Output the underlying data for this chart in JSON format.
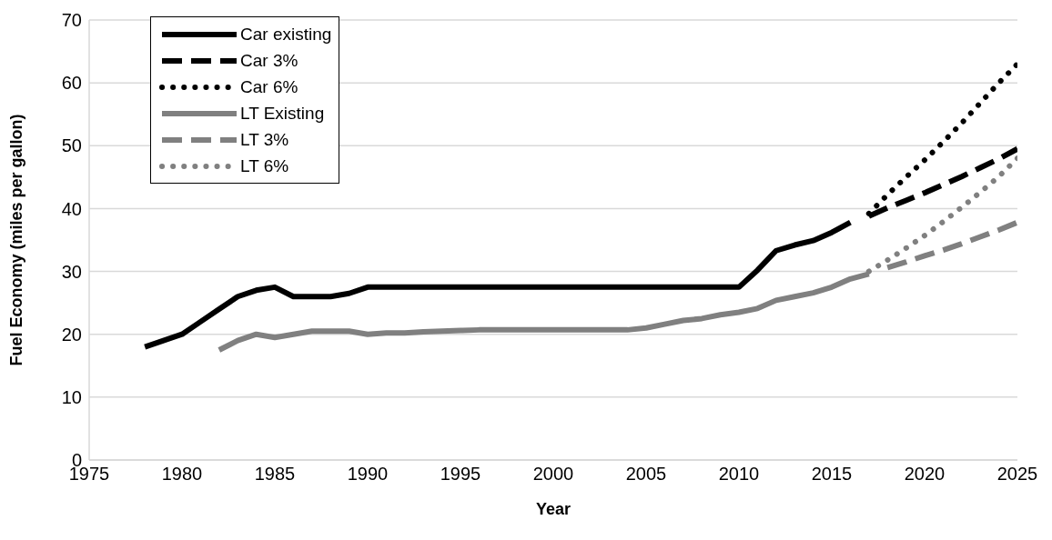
{
  "chart_data": {
    "type": "line",
    "xlabel": "Year",
    "ylabel": "Fuel Economy (miles per gallon)",
    "xlim": [
      1975,
      2025
    ],
    "xticks": [
      1975,
      1980,
      1985,
      1990,
      1995,
      2000,
      2005,
      2010,
      2015,
      2020,
      2025
    ],
    "ylim": [
      0,
      70
    ],
    "yticks": [
      0,
      10,
      20,
      30,
      40,
      50,
      60,
      70
    ],
    "grid": "y",
    "legend": "top left",
    "marker": "none",
    "series": [
      {
        "name": "Car existing",
        "color": "#000000",
        "line_style": "solid",
        "x": [
          1978,
          1979,
          1980,
          1981,
          1982,
          1983,
          1984,
          1985,
          1986,
          1987,
          1988,
          1989,
          1990,
          2010,
          2011,
          2012,
          2013,
          2014,
          2015,
          2016
        ],
        "values": [
          18,
          19,
          20,
          22,
          24,
          26,
          27,
          27.5,
          26,
          26,
          26,
          26.5,
          27.5,
          27.5,
          30.2,
          33.3,
          34.2,
          34.9,
          36.2,
          37.8
        ]
      },
      {
        "name": "Car 3%",
        "color": "#000000",
        "line_style": "dashed",
        "x": [
          2017,
          2018,
          2019,
          2020,
          2021,
          2022,
          2023,
          2024,
          2025
        ],
        "values": [
          38.8,
          40.1,
          41.3,
          42.5,
          43.8,
          45.1,
          46.5,
          47.9,
          49.5
        ]
      },
      {
        "name": "Car 6%",
        "color": "#000000",
        "line_style": "dotted",
        "x": [
          2017,
          2018,
          2019,
          2020,
          2021,
          2022,
          2023,
          2024,
          2025
        ],
        "values": [
          39.2,
          42.2,
          45,
          47.7,
          50.6,
          53.6,
          56.8,
          60,
          63
        ]
      },
      {
        "name": "LT Existing",
        "color": "#808080",
        "line_style": "solid",
        "x": [
          1982,
          1983,
          1984,
          1985,
          1986,
          1987,
          1988,
          1989,
          1990,
          1991,
          1992,
          1993,
          1994,
          1995,
          1996,
          2004,
          2005,
          2006,
          2007,
          2008,
          2009,
          2010,
          2011,
          2012,
          2013,
          2014,
          2015,
          2016,
          2017
        ],
        "values": [
          17.5,
          19,
          20,
          19.5,
          20,
          20.5,
          20.5,
          20.5,
          20,
          20.2,
          20.2,
          20.4,
          20.5,
          20.6,
          20.7,
          20.7,
          21,
          21.6,
          22.2,
          22.5,
          23.1,
          23.5,
          24.1,
          25.4,
          26,
          26.6,
          27.5,
          28.8,
          29.6
        ]
      },
      {
        "name": "LT 3%",
        "color": "#808080",
        "line_style": "dashed",
        "x": [
          2018,
          2019,
          2020,
          2021,
          2022,
          2023,
          2024,
          2025
        ],
        "values": [
          30.6,
          31.5,
          32.5,
          33.4,
          34.4,
          35.5,
          36.6,
          37.8
        ]
      },
      {
        "name": "LT 6%",
        "color": "#808080",
        "line_style": "dotted",
        "x": [
          2017,
          2018,
          2019,
          2020,
          2021,
          2022,
          2023,
          2024,
          2025
        ],
        "values": [
          30,
          31.8,
          33.7,
          35.7,
          37.9,
          40.2,
          42.6,
          45.1,
          48
        ]
      }
    ]
  }
}
